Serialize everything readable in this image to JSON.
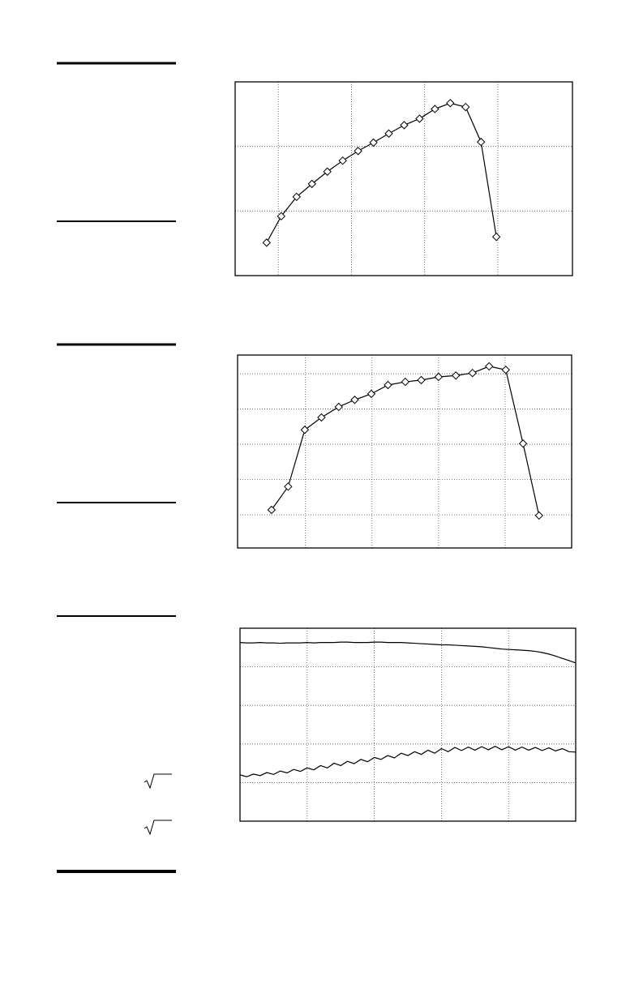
{
  "chart_data": [
    {
      "type": "line",
      "marker": "diamond",
      "grid": true,
      "x": [
        0.84,
        1.04,
        1.25,
        1.46,
        1.67,
        1.88,
        2.09,
        2.3,
        2.51,
        2.72,
        2.93,
        3.14,
        3.35,
        3.56,
        3.77,
        3.98
      ],
      "series": [
        {
          "color": "#000000",
          "values": [
            0.51,
            0.92,
            1.22,
            1.42,
            1.61,
            1.78,
            1.93,
            2.06,
            2.2,
            2.33,
            2.43,
            2.58,
            2.67,
            2.61,
            2.07,
            0.6
          ]
        }
      ],
      "xlim": [
        0.41,
        5.02
      ],
      "ylim": [
        0,
        3
      ],
      "xticks": [
        1,
        2,
        3,
        4
      ],
      "yticks": [
        1,
        2
      ]
    },
    {
      "type": "line",
      "marker": "diamond",
      "grid": true,
      "x": [
        0.49,
        0.74,
        0.99,
        1.24,
        1.5,
        1.74,
        1.99,
        2.24,
        2.5,
        2.74,
        3.0,
        3.26,
        3.51,
        3.76,
        4.01,
        4.27,
        4.51
      ],
      "series": [
        {
          "color": "#000000",
          "values": [
            1.14,
            1.8,
            3.41,
            3.76,
            4.06,
            4.26,
            4.43,
            4.68,
            4.77,
            4.82,
            4.91,
            4.95,
            5.02,
            5.21,
            5.11,
            3.02,
            0.98
          ]
        }
      ],
      "xlim": [
        -0.02,
        5.0
      ],
      "ylim": [
        0.06,
        5.53
      ],
      "xticks": [
        1,
        2,
        3,
        4
      ],
      "yticks": [
        1,
        2,
        3,
        4,
        5
      ]
    },
    {
      "type": "line",
      "grid": true,
      "x": [
        0,
        0.1,
        0.2,
        0.3,
        0.4,
        0.5,
        0.6,
        0.7,
        0.8,
        0.9,
        1.0,
        1.1,
        1.2,
        1.3,
        1.4,
        1.5,
        1.6,
        1.7,
        1.8,
        1.9,
        2.0,
        2.1,
        2.2,
        2.3,
        2.4,
        2.5,
        2.6,
        2.7,
        2.8,
        2.9,
        3.0,
        3.1,
        3.2,
        3.3,
        3.4,
        3.5,
        3.6,
        3.7,
        3.8,
        3.9,
        4.0,
        4.1,
        4.2,
        4.3,
        4.4,
        4.5,
        4.6,
        4.7,
        4.8,
        4.9,
        5.0
      ],
      "series": [
        {
          "color": "#000000",
          "values": [
            4.63,
            4.62,
            4.62,
            4.63,
            4.62,
            4.62,
            4.61,
            4.62,
            4.62,
            4.62,
            4.63,
            4.62,
            4.63,
            4.63,
            4.63,
            4.64,
            4.64,
            4.63,
            4.63,
            4.63,
            4.64,
            4.64,
            4.63,
            4.63,
            4.63,
            4.62,
            4.61,
            4.6,
            4.59,
            4.58,
            4.57,
            4.57,
            4.56,
            4.55,
            4.54,
            4.53,
            4.52,
            4.5,
            4.48,
            4.46,
            4.45,
            4.44,
            4.43,
            4.42,
            4.4,
            4.37,
            4.33,
            4.28,
            4.22,
            4.16,
            4.1
          ]
        },
        {
          "color": "#000000",
          "values": [
            1.2,
            1.15,
            1.22,
            1.18,
            1.26,
            1.21,
            1.3,
            1.25,
            1.34,
            1.29,
            1.38,
            1.33,
            1.44,
            1.38,
            1.5,
            1.44,
            1.55,
            1.49,
            1.6,
            1.54,
            1.65,
            1.6,
            1.7,
            1.64,
            1.76,
            1.7,
            1.8,
            1.73,
            1.84,
            1.76,
            1.88,
            1.8,
            1.91,
            1.83,
            1.92,
            1.84,
            1.93,
            1.85,
            1.94,
            1.85,
            1.93,
            1.84,
            1.92,
            1.84,
            1.91,
            1.83,
            1.9,
            1.82,
            1.88,
            1.8,
            1.79
          ]
        }
      ],
      "xlim": [
        0,
        5
      ],
      "ylim": [
        0,
        5
      ],
      "xticks": [
        1,
        2,
        3,
        4
      ],
      "yticks": [
        1,
        2,
        3,
        4
      ]
    }
  ]
}
